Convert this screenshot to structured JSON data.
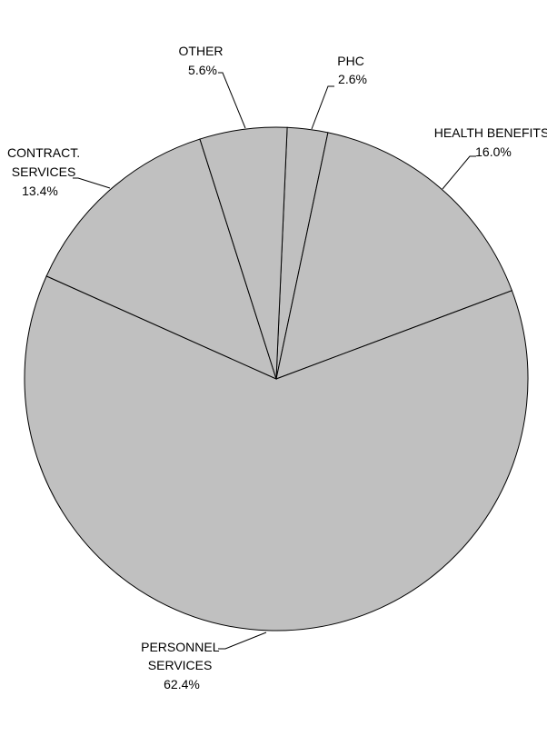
{
  "chart_data": {
    "type": "pie",
    "title": "",
    "start_angle_deg": 272.5,
    "direction": "clockwise",
    "slice_color": "#c0c0c0",
    "edge_color": "#000000",
    "slices": [
      {
        "name": "PHC",
        "lines": [
          "PHC",
          "2.6%"
        ],
        "value": 2.6
      },
      {
        "name": "HEALTH BENEFITS",
        "lines": [
          "HEALTH BENEFITS",
          "16.0%"
        ],
        "value": 16.0
      },
      {
        "name": "PERSONNEL SERVICES",
        "lines": [
          "PERSONNEL",
          "SERVICES",
          "62.4%"
        ],
        "value": 62.4
      },
      {
        "name": "CONTRACT. SERVICES",
        "lines": [
          "CONTRACT.",
          "SERVICES",
          "13.4%"
        ],
        "value": 13.4
      },
      {
        "name": "OTHER",
        "lines": [
          "OTHER",
          "5.6%"
        ],
        "value": 5.6
      }
    ]
  }
}
